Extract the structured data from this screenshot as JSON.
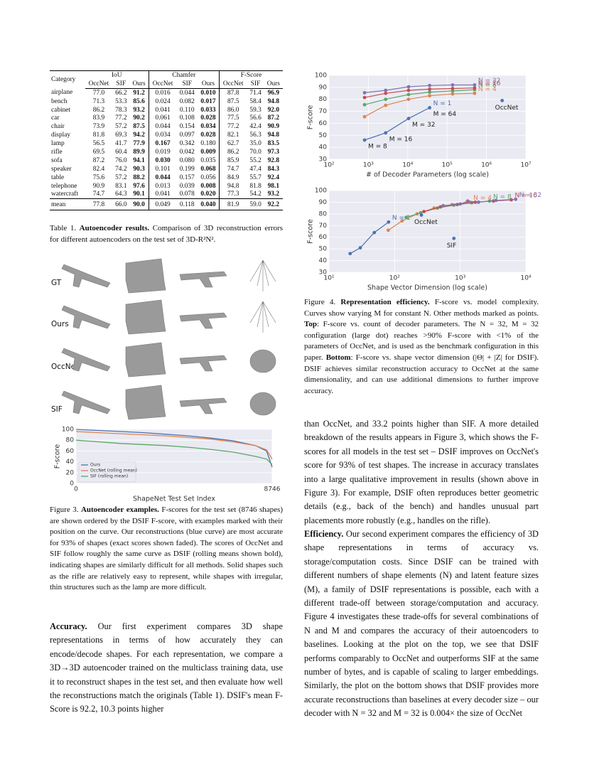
{
  "table1": {
    "header_category": "Category",
    "groups": [
      "IoU",
      "Chamfer",
      "F-Score"
    ],
    "subheaders": [
      "OccNet",
      "SIF",
      "Ours"
    ],
    "best": [
      "max",
      "min",
      "max"
    ],
    "rows": [
      {
        "category": "airplane",
        "values": [
          "77.0",
          "66.2",
          "91.2",
          "0.016",
          "0.044",
          "0.010",
          "87.8",
          "71.4",
          "96.9"
        ]
      },
      {
        "category": "bench",
        "values": [
          "71.3",
          "53.3",
          "85.6",
          "0.024",
          "0.082",
          "0.017",
          "87.5",
          "58.4",
          "94.8"
        ]
      },
      {
        "category": "cabinet",
        "values": [
          "86.2",
          "78.3",
          "93.2",
          "0.041",
          "0.110",
          "0.033",
          "86.0",
          "59.3",
          "92.0"
        ]
      },
      {
        "category": "car",
        "values": [
          "83.9",
          "77.2",
          "90.2",
          "0.061",
          "0.108",
          "0.028",
          "77.5",
          "56.6",
          "87.2"
        ]
      },
      {
        "category": "chair",
        "values": [
          "73.9",
          "57.2",
          "87.5",
          "0.044",
          "0.154",
          "0.034",
          "77.2",
          "42.4",
          "90.9"
        ]
      },
      {
        "category": "display",
        "values": [
          "81.8",
          "69.3",
          "94.2",
          "0.034",
          "0.097",
          "0.028",
          "82.1",
          "56.3",
          "94.8"
        ]
      },
      {
        "category": "lamp",
        "values": [
          "56.5",
          "41.7",
          "77.9",
          "0.167",
          "0.342",
          "0.180",
          "62.7",
          "35.0",
          "83.5"
        ]
      },
      {
        "category": "rifle",
        "values": [
          "69.5",
          "60.4",
          "89.9",
          "0.019",
          "0.042",
          "0.009",
          "86.2",
          "70.0",
          "97.3"
        ]
      },
      {
        "category": "sofa",
        "values": [
          "87.2",
          "76.0",
          "94.1",
          "0.030",
          "0.080",
          "0.035",
          "85.9",
          "55.2",
          "92.8"
        ]
      },
      {
        "category": "speaker",
        "values": [
          "82.4",
          "74.2",
          "90.3",
          "0.101",
          "0.199",
          "0.068",
          "74.7",
          "47.4",
          "84.3"
        ]
      },
      {
        "category": "table",
        "values": [
          "75.6",
          "57.2",
          "88.2",
          "0.044",
          "0.157",
          "0.056",
          "84.9",
          "55.7",
          "92.4"
        ]
      },
      {
        "category": "telephone",
        "values": [
          "90.9",
          "83.1",
          "97.6",
          "0.013",
          "0.039",
          "0.008",
          "94.8",
          "81.8",
          "98.1"
        ]
      },
      {
        "category": "watercraft",
        "values": [
          "74.7",
          "64.3",
          "90.1",
          "0.041",
          "0.078",
          "0.020",
          "77.3",
          "54.2",
          "93.2"
        ]
      }
    ],
    "mean": {
      "category": "mean",
      "values": [
        "77.8",
        "66.0",
        "90.0",
        "0.049",
        "0.118",
        "0.040",
        "81.9",
        "59.0",
        "92.2"
      ]
    },
    "caption": {
      "runs": [
        {
          "text": "Table 1. ",
          "bold": false
        },
        {
          "text": "Autoencoder results.",
          "bold": true
        },
        {
          "text": " Comparison of 3D reconstruction errors for different autoencoders on the test set of 3D-R²N².",
          "bold": false
        }
      ]
    }
  },
  "figure3": {
    "row_labels": [
      "GT",
      "Ours",
      "OccNet",
      "SIF"
    ],
    "chart": {
      "type": "line",
      "xlabel": "ShapeNet Test Set Index",
      "ylabel": "F-score",
      "xlim": [
        0,
        8746
      ],
      "ylim": [
        0,
        100
      ],
      "xticks": [
        0,
        8746
      ],
      "yticks": [
        0,
        20,
        40,
        60,
        80,
        100
      ],
      "grid": true,
      "legend": "lower left",
      "markers": false,
      "series": [
        {
          "name": "Ours",
          "color": "#4c72b0",
          "x": [
            0,
            1000,
            2000,
            3000,
            4000,
            5000,
            6000,
            7000,
            8000,
            8500,
            8746
          ],
          "values": [
            100,
            98,
            96,
            94,
            91,
            88,
            84,
            79,
            70,
            60,
            30
          ]
        },
        {
          "name": "OccNet (rolling mean)",
          "color": "#dd8452",
          "x": [
            0,
            1000,
            2000,
            3000,
            4000,
            5000,
            6000,
            7000,
            8000,
            8500,
            8746
          ],
          "values": [
            96,
            94,
            92,
            90,
            88,
            85,
            82,
            77,
            70,
            62,
            45
          ]
        },
        {
          "name": "SIF (rolling mean)",
          "color": "#55a868",
          "x": [
            0,
            1000,
            2000,
            3000,
            4000,
            5000,
            6000,
            7000,
            8000,
            8500,
            8746
          ],
          "values": [
            80,
            77,
            74,
            72,
            70,
            67,
            63,
            58,
            50,
            45,
            35
          ]
        }
      ]
    },
    "caption": {
      "runs": [
        {
          "text": "Figure 3. ",
          "bold": false
        },
        {
          "text": "Autoencoder examples.",
          "bold": true
        },
        {
          "text": " F-scores for the test set (8746 shapes) are shown ordered by the DSIF F-score, with examples marked with their position on the curve. Our reconstructions (blue curve) are most accurate for 93% of shapes (exact scores shown faded). The scores of OccNet and SIF follow roughly the same curve as DSIF (rolling means shown bold), indicating shapes are similarly difficult for all methods. Solid shapes such as the rifle are relatively easy to represent, while shapes with irregular, thin structures such as the lamp are more difficult.",
          "bold": false
        }
      ]
    }
  },
  "figure4": {
    "top": {
      "type": "line",
      "xlabel": "# of Decoder Parameters (log scale)",
      "ylabel": "F-score",
      "xlog": true,
      "xlim": [
        100,
        10000000
      ],
      "ylim": [
        30,
        100
      ],
      "xticks": [
        {
          "value": 100,
          "label": "10²"
        },
        {
          "value": 1000,
          "label": "10³"
        },
        {
          "value": 10000,
          "label": "10⁴"
        },
        {
          "value": 100000,
          "label": "10⁵"
        },
        {
          "value": 1000000,
          "label": "10⁶"
        },
        {
          "value": 10000000,
          "label": "10⁷"
        }
      ],
      "yticks": [
        30,
        40,
        50,
        60,
        70,
        80,
        90,
        100
      ],
      "grid": true,
      "markers": true,
      "series": [
        {
          "name": "N = 1",
          "color": "#4c72b0",
          "x": [
            800,
            2750,
            10500,
            36000
          ],
          "values": [
            46,
            52,
            64,
            73
          ],
          "point_labels": [
            "M = 8",
            "M = 16",
            "M = 32",
            "M = 64"
          ]
        },
        {
          "name": "N = 4",
          "color": "#dd8452",
          "x": [
            800,
            2750,
            10500,
            36000,
            138000,
            500000
          ],
          "values": [
            65.5,
            75,
            80,
            83,
            84.5,
            85
          ]
        },
        {
          "name": "N = 8",
          "color": "#55a868",
          "x": [
            800,
            2750,
            10500,
            36000,
            138000,
            500000
          ],
          "values": [
            75.5,
            80,
            84,
            86,
            87,
            88
          ]
        },
        {
          "name": "N = 16",
          "color": "#c44e52",
          "x": [
            800,
            2750,
            10500,
            36000,
            138000,
            500000
          ],
          "values": [
            81.5,
            85,
            87.5,
            88.5,
            89,
            89.5
          ]
        },
        {
          "name": "N = 32",
          "color": "#8172b3",
          "x": [
            800,
            2750,
            10500,
            36000,
            138000,
            500000
          ],
          "values": [
            85.5,
            87.5,
            90.5,
            91.5,
            92,
            92
          ]
        },
        {
          "name": "OccNet",
          "color": "#4c72b0",
          "x": [
            2500000
          ],
          "values": [
            79
          ]
        }
      ]
    },
    "bottom": {
      "type": "line",
      "xlabel": "Shape Vector Dimension (log scale)",
      "ylabel": "F-score",
      "xlog": true,
      "xlim": [
        10,
        10000
      ],
      "ylim": [
        30,
        100
      ],
      "xticks": [
        {
          "value": 10,
          "label": "10¹"
        },
        {
          "value": 100,
          "label": "10²"
        },
        {
          "value": 1000,
          "label": "10³"
        },
        {
          "value": 10000,
          "label": "10⁴"
        }
      ],
      "yticks": [
        30,
        40,
        50,
        60,
        70,
        80,
        90,
        100
      ],
      "grid": true,
      "markers": true,
      "series": [
        {
          "name": "N = 1",
          "color": "#4c72b0",
          "x": [
            21,
            30,
            49,
            81
          ],
          "values": [
            46,
            51,
            64,
            73
          ]
        },
        {
          "name": "N = 4",
          "color": "#dd8452",
          "x": [
            80,
            130,
            220,
            400,
            750,
            1400
          ],
          "values": [
            66,
            74,
            80,
            85,
            88,
            90
          ]
        },
        {
          "name": "N = 8",
          "color": "#55a868",
          "x": [
            150,
            250,
            450,
            800,
            1500,
            2800
          ],
          "values": [
            77,
            81,
            85,
            87.5,
            89.5,
            91
          ]
        },
        {
          "name": "N = 16",
          "color": "#c44e52",
          "x": [
            280,
            500,
            900,
            1700,
            3200,
            6000
          ],
          "values": [
            82,
            86,
            88,
            90,
            91,
            92
          ]
        },
        {
          "name": "N = 32",
          "color": "#8172b3",
          "x": [
            550,
            1000,
            1300,
            1900,
            3500,
            7000
          ],
          "values": [
            87,
            88.5,
            91,
            90,
            91.5,
            92.5
          ]
        },
        {
          "name": "OccNet",
          "color": "#4c72b0",
          "x": [
            256
          ],
          "values": [
            79
          ]
        },
        {
          "name": "SIF",
          "color": "#4c72b0",
          "x": [
            800
          ],
          "values": [
            59
          ]
        }
      ]
    },
    "caption": {
      "runs": [
        {
          "text": "Figure 4. ",
          "bold": false
        },
        {
          "text": "Representation efficiency.",
          "bold": true
        },
        {
          "text": " F-score vs. model complexity. Curves show varying M for constant N. Other methods marked as points. ",
          "bold": false
        },
        {
          "text": "Top",
          "bold": true
        },
        {
          "text": ": F-score vs. count of decoder parameters. The N = 32, M = 32 configuration (large dot) reaches >90% F-score with <1% of the parameters of OccNet, and is used as the benchmark configuration in this paper. ",
          "bold": false
        },
        {
          "text": "Bottom",
          "bold": true
        },
        {
          "text": ": F-score vs. shape vector dimension (|Θ| + |Z| for DSIF). DSIF achieves similar reconstruction accuracy to OccNet at the same dimensionality, and can use additional dimensions to further improve accuracy.",
          "bold": false
        }
      ]
    }
  },
  "body": {
    "accuracy": {
      "runs": [
        {
          "text": "Accuracy.",
          "bold": true
        },
        {
          "text": " Our first experiment compares 3D shape representations in terms of how accurately they can encode/decode shapes. For each representation, we compare a 3D→3D autoencoder trained on the multiclass training data, use it to reconstruct shapes in the test set, and then evaluate how well the reconstructions match the originals (Table 1). DSIF's mean F-Score is 92.2, 10.3 points higher",
          "bold": false
        }
      ]
    },
    "continuation": {
      "runs": [
        {
          "text": "than OccNet, and 33.2 points higher than SIF. A more detailed breakdown of the results appears in Figure 3, which shows the F-scores for all models in the test set – DSIF improves on OccNet's score for 93% of test shapes. The increase in accuracy translates into a large qualitative improvement in results (shown above in Figure 3). For example, DSIF often reproduces better geometric details (e.g., back of the bench) and handles unusual part placements more robustly (e.g., handles on the rifle).",
          "bold": false
        }
      ]
    },
    "efficiency": {
      "runs": [
        {
          "text": "Efficiency.",
          "bold": true
        },
        {
          "text": " Our second experiment compares the efficiency of 3D shape representations in terms of accuracy vs. storage/computation costs. Since DSIF can be trained with different numbers of shape elements (N) and latent feature sizes (M), a family of DSIF representations is possible, each with a different trade-off between storage/computation and accuracy. Figure 4 investigates these trade-offs for several combinations of N and M and compares the accuracy of their autoencoders to baselines. Looking at the plot on the top, we see that DSIF performs comparably to OccNet and outperforms SIF at the same number of bytes, and is capable of scaling to larger embeddings. Similarly, the plot on the bottom shows that DSIF provides more accurate reconstructions than baselines at every decoder size – our decoder with N = 32 and M = 32 is 0.004× the size of OccNet",
          "bold": false
        }
      ]
    }
  }
}
